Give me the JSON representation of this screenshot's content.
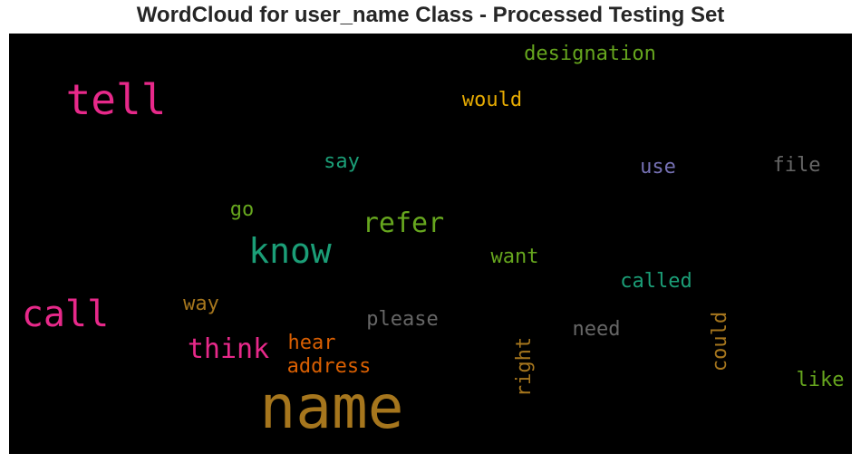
{
  "title": "WordCloud for user_name Class - Processed Testing Set",
  "chart_data": {
    "type": "wordcloud",
    "title": "WordCloud for user_name Class - Processed Testing Set",
    "background": "#000000",
    "words": [
      {
        "text": "name",
        "color": "#a6761d"
      },
      {
        "text": "tell",
        "color": "#e7298a"
      },
      {
        "text": "call",
        "color": "#e7298a"
      },
      {
        "text": "know",
        "color": "#1b9e77"
      },
      {
        "text": "refer",
        "color": "#66a61e"
      },
      {
        "text": "think",
        "color": "#e7298a"
      },
      {
        "text": "designation",
        "color": "#66a61e"
      },
      {
        "text": "would",
        "color": "#e6ab02"
      },
      {
        "text": "called",
        "color": "#1b9e77"
      },
      {
        "text": "please",
        "color": "#666666"
      },
      {
        "text": "hear",
        "color": "#d95f02"
      },
      {
        "text": "address",
        "color": "#d95f02"
      },
      {
        "text": "right",
        "color": "#a6761d"
      },
      {
        "text": "could",
        "color": "#a6761d"
      },
      {
        "text": "want",
        "color": "#66a61e"
      },
      {
        "text": "need",
        "color": "#666666"
      },
      {
        "text": "like",
        "color": "#66a61e"
      },
      {
        "text": "say",
        "color": "#1b9e77"
      },
      {
        "text": "use",
        "color": "#7570b3"
      },
      {
        "text": "file",
        "color": "#666666"
      },
      {
        "text": "go",
        "color": "#66a61e"
      },
      {
        "text": "way",
        "color": "#a6761d"
      }
    ]
  }
}
